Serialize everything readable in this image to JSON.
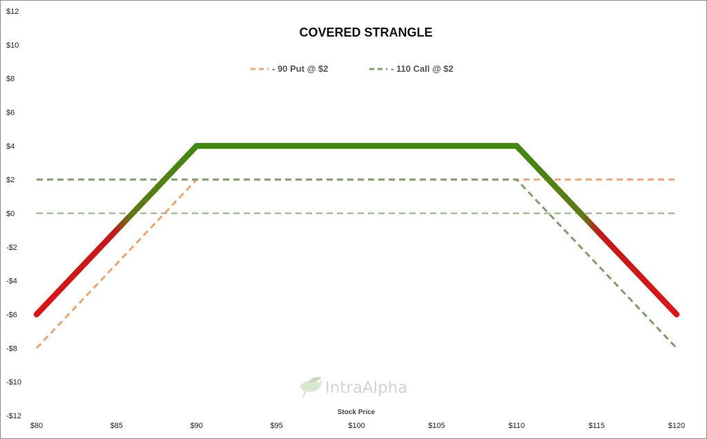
{
  "chart_data": {
    "type": "line",
    "title": "COVERED STRANGLE",
    "xlabel": "Stock Price",
    "ylabel": "",
    "x_ticks": [
      80,
      85,
      90,
      95,
      100,
      105,
      110,
      115,
      120
    ],
    "x_tick_labels": [
      "$80",
      "$85",
      "$90",
      "$95",
      "$100",
      "$105",
      "$110",
      "$115",
      "$120"
    ],
    "y_ticks": [
      12,
      10,
      8,
      6,
      4,
      2,
      0,
      -2,
      -4,
      -6,
      -8,
      -10,
      -12
    ],
    "y_tick_labels": [
      "$12",
      "$10",
      "$8",
      "$6",
      "$4",
      "$2",
      "$0",
      "-$2",
      "-$4",
      "-$6",
      "-$8",
      "-$10",
      "-$12"
    ],
    "xlim": [
      80,
      120
    ],
    "ylim": [
      -12,
      12
    ],
    "legend_position": "top-center",
    "legend": [
      {
        "label": "- 90 Put @ $2",
        "color": "#f0a36f"
      },
      {
        "label": "- 110 Call @ $2",
        "color": "#7da16a"
      }
    ],
    "series": [
      {
        "name": "- 90 Put @ $2",
        "style": "dashed",
        "color": "#f0a36f",
        "x": [
          80,
          90,
          120
        ],
        "y": [
          -8,
          2,
          2
        ]
      },
      {
        "name": "- 110 Call @ $2",
        "style": "dashed",
        "color": "#7da16a",
        "x": [
          80,
          110,
          120
        ],
        "y": [
          2,
          2,
          -8
        ]
      },
      {
        "style": "dashed",
        "color": "#9fbf90",
        "x": [
          80,
          120
        ],
        "y": [
          0,
          0
        ]
      },
      {
        "style": "thick",
        "color_profit": "#3f8a10",
        "color_loss": "#e01414",
        "x": [
          80,
          90,
          110,
          120
        ],
        "y": [
          -6,
          4,
          4,
          -6
        ]
      }
    ],
    "watermark": "IntraAlpha"
  }
}
